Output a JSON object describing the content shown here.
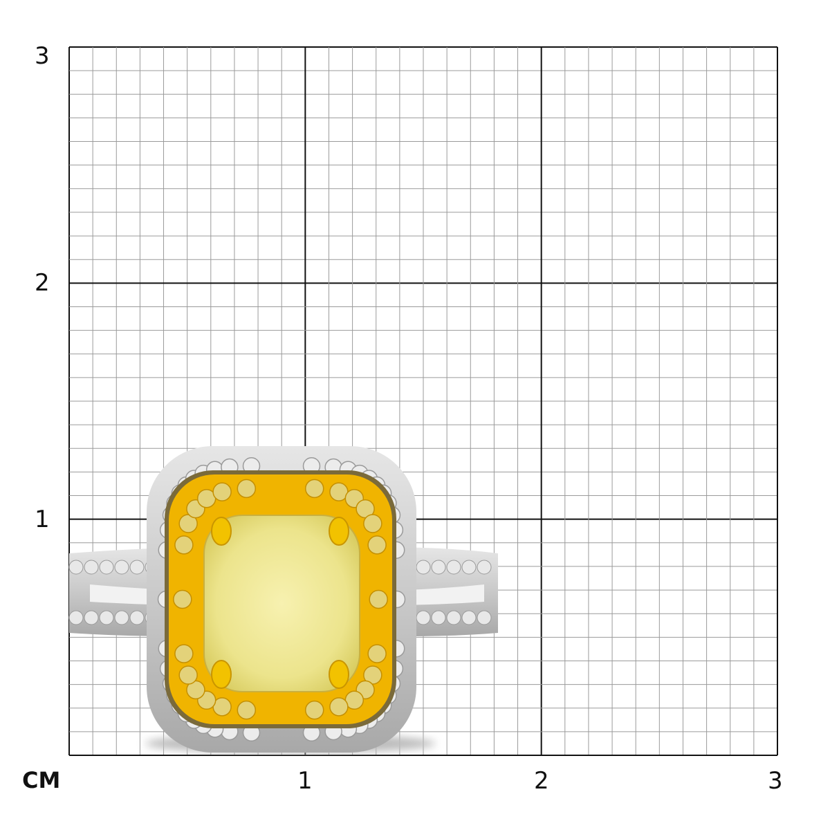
{
  "scale": {
    "unit_label": "CM",
    "y_ticks": [
      "1",
      "2",
      "3"
    ],
    "x_ticks": [
      "1",
      "2",
      "3"
    ],
    "range_cm": [
      0,
      3
    ],
    "minor_divisions_per_cm": 10
  },
  "product": {
    "type": "ring",
    "center_stone_color": "#f3ec9a",
    "halo_inner_color": "#f0b400",
    "halo_outer_color": "#d8d8d8",
    "approx_width_cm": 1.14,
    "approx_height_cm": 1.3
  },
  "colors": {
    "grid_minor": "#9a9a9a",
    "grid_major": "#111111"
  }
}
